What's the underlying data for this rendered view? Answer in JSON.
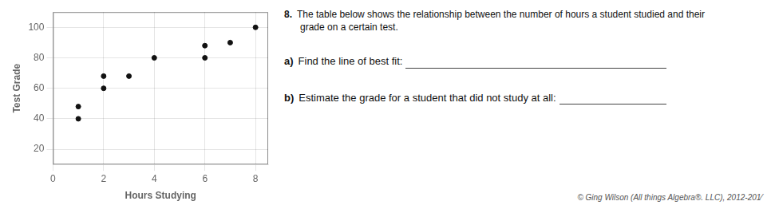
{
  "chart_data": {
    "type": "scatter",
    "x": [
      1,
      1,
      2,
      2,
      3,
      4,
      6,
      6,
      7,
      8
    ],
    "values": [
      40,
      48,
      60,
      68,
      68,
      80,
      88,
      80,
      90,
      100
    ],
    "color": "#111111",
    "xlabel": "Hours Studying",
    "ylabel": "Test Grade",
    "xlim": [
      0,
      8.5
    ],
    "ylim": [
      10,
      110
    ],
    "xticks": [
      0,
      2,
      4,
      6,
      8
    ],
    "yticks": [
      20,
      40,
      60,
      80,
      100
    ],
    "grid": true,
    "annotations": [
      "8.",
      "The table below shows the relationship between the number of hours a student studied and their",
      "grade on a certain test.",
      "a)",
      "Find the line of best fit: ",
      "b)",
      "Estimate the grade for a student that did not study at all: ",
      "© Ging Wilson (All things Algebra®. LLC), 2012-201⁄"
    ]
  }
}
